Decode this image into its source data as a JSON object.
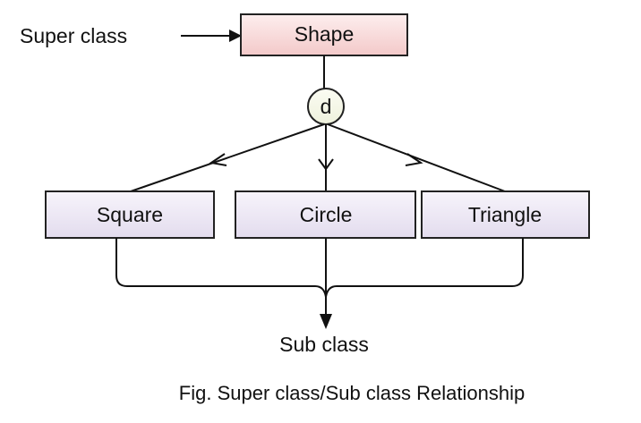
{
  "superclass_label": "Super class",
  "superclass": {
    "name": "Shape",
    "fill": "#f6d4d4"
  },
  "disjoint_marker": "d",
  "subclasses": [
    {
      "name": "Square"
    },
    {
      "name": "Circle"
    },
    {
      "name": "Triangle"
    }
  ],
  "subclass_fill": "#ece6f3",
  "subclass_label": "Sub class",
  "caption": "Fig. Super class/Sub class Relationship"
}
